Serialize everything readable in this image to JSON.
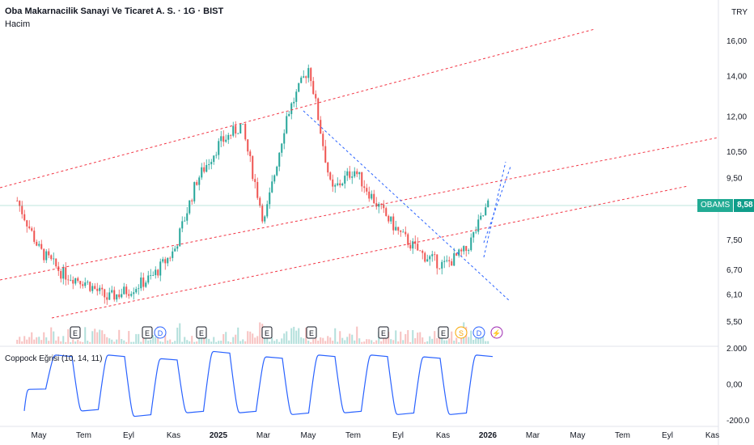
{
  "header": {
    "title": "Oba Makarnacilik Sanayi Ve Ticaret A. S. · 1G · BIST",
    "volume_label": "Hacim",
    "currency": "TRY"
  },
  "indicator": {
    "label": "Coppock Eğrisi (10, 14, 11)",
    "ticks": [
      "2.000",
      "0,00",
      "-200.0"
    ]
  },
  "price_tag": {
    "symbol": "OBAMS",
    "value": "8,58"
  },
  "events": [
    "E",
    "E",
    "D",
    "E",
    "E",
    "E",
    "E",
    "E",
    "S",
    "D",
    "⚡"
  ],
  "colors": {
    "up": "#26a69a",
    "down": "#ef5350",
    "channel": "#f23645",
    "trend": "#2962ff",
    "coppock": "#2962ff"
  },
  "chart_data": {
    "type": "candlestick",
    "y_scale": "log",
    "y_ticks": [
      "16,00",
      "14,00",
      "12,00",
      "10,50",
      "9,50",
      "8,50",
      "7,50",
      "6,70",
      "6,10",
      "5,50"
    ],
    "x_ticks": [
      "May",
      "Tem",
      "Eyl",
      "Kas",
      "2025",
      "Mar",
      "May",
      "Tem",
      "Eyl",
      "Kas",
      "2026",
      "Mar",
      "May",
      "Tem",
      "Eyl",
      "Kas"
    ],
    "last_price": 8.58,
    "price_path": [
      [
        "2024-04",
        8.7
      ],
      [
        "2024-05",
        7.2
      ],
      [
        "2024-06",
        6.6
      ],
      [
        "2024-07",
        6.4
      ],
      [
        "2024-08",
        6.0
      ],
      [
        "2024-09",
        6.2
      ],
      [
        "2024-10",
        6.5
      ],
      [
        "2024-11",
        7.2
      ],
      [
        "2024-12",
        9.4
      ],
      [
        "2025-01",
        10.8
      ],
      [
        "2025-02",
        11.6
      ],
      [
        "2025-03",
        8.0
      ],
      [
        "2025-04",
        12.0
      ],
      [
        "2025-05",
        14.5
      ],
      [
        "2025-06",
        9.0
      ],
      [
        "2025-07",
        9.8
      ],
      [
        "2025-08",
        8.6
      ],
      [
        "2025-09",
        7.7
      ],
      [
        "2025-10",
        7.1
      ],
      [
        "2025-11",
        6.8
      ],
      [
        "2025-12",
        7.2
      ],
      [
        "2026-01",
        8.6
      ]
    ],
    "coppock_levels": [
      -0.3,
      1.6,
      -1.5,
      1.6,
      -1.8,
      1.4,
      -1.6,
      1.8,
      -1.6,
      1.5,
      -1.7,
      1.6,
      -1.6,
      1.6,
      -1.7,
      1.5,
      -1.7,
      1.6
    ]
  }
}
